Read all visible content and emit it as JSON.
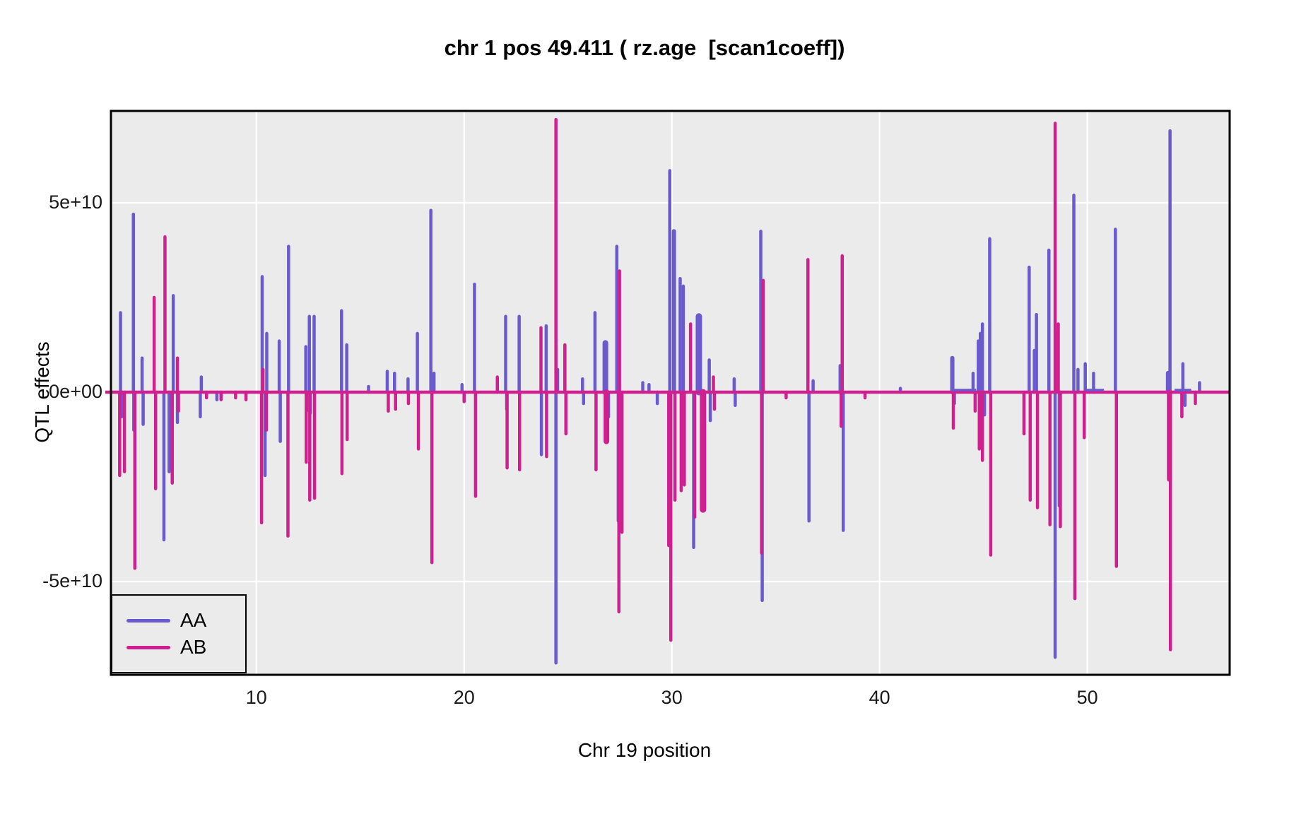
{
  "title": "chr 1 pos 49.411 ( rz.age  [scan1coeff])",
  "chart_data": {
    "type": "line",
    "subtype": "coefficient-scan-spikes",
    "title": "chr 1 pos 49.411 ( rz.age  [scan1coeff])",
    "xlabel": "Chr 19 position",
    "ylabel": "QTL effects",
    "x_ticks": [
      10,
      20,
      30,
      40,
      50
    ],
    "y_ticks": [
      {
        "label": "5e+10",
        "value": 5
      },
      {
        "label": "0e+00",
        "value": 0
      },
      {
        "label": "-5e+10",
        "value": -5
      }
    ],
    "xlim": [
      3.0,
      56.85
    ],
    "ylim": [
      -74500000000.0,
      74500000000.0
    ],
    "value_unit": 10000000000.0,
    "grid": true,
    "panel_bg": "#ebebeb",
    "grid_color": "#ffffff",
    "border_color": "#000000",
    "legend": {
      "position": "bottom-left",
      "entries": [
        {
          "label": "AA",
          "color": "#6A5ACD"
        },
        {
          "label": "AB",
          "color": "#D02090"
        }
      ]
    },
    "baseline": {
      "series": "AB",
      "value": 0,
      "color": "#D02090"
    },
    "aa_baseline_visible_segments": [
      [
        43.45,
        44.65
      ],
      [
        49.95,
        50.8
      ],
      [
        54.2,
        55.0
      ]
    ],
    "series": [
      {
        "name": "AA",
        "color": "#6A5ACD",
        "spikes": [
          [
            3.46,
            2.1
          ],
          [
            3.52,
            -0.65
          ],
          [
            4.08,
            4.7
          ],
          [
            4.1,
            -1.0
          ],
          [
            4.5,
            0.9
          ],
          [
            4.55,
            -0.85
          ],
          [
            5.55,
            -3.9
          ],
          [
            5.8,
            -2.1
          ],
          [
            6.0,
            2.55
          ],
          [
            6.2,
            -0.8
          ],
          [
            7.3,
            -0.65
          ],
          [
            7.35,
            0.4
          ],
          [
            8.1,
            -0.2
          ],
          [
            10.28,
            3.05
          ],
          [
            10.42,
            -2.2
          ],
          [
            10.5,
            1.55
          ],
          [
            11.1,
            1.35
          ],
          [
            11.15,
            -1.3
          ],
          [
            11.55,
            3.85
          ],
          [
            12.38,
            1.2
          ],
          [
            12.42,
            -0.5
          ],
          [
            12.55,
            2.0
          ],
          [
            12.6,
            -0.55
          ],
          [
            12.78,
            2.0
          ],
          [
            14.1,
            2.15
          ],
          [
            14.35,
            1.25
          ],
          [
            15.4,
            0.15
          ],
          [
            16.3,
            0.55
          ],
          [
            16.65,
            0.5
          ],
          [
            17.3,
            0.35
          ],
          [
            17.75,
            1.55
          ],
          [
            18.4,
            4.8
          ],
          [
            18.55,
            0.5
          ],
          [
            19.9,
            0.2
          ],
          [
            20.5,
            2.85
          ],
          [
            21.6,
            0.3
          ],
          [
            22.0,
            2.0
          ],
          [
            22.05,
            -0.45
          ],
          [
            22.65,
            2.0
          ],
          [
            23.72,
            -1.65
          ],
          [
            23.95,
            1.75
          ],
          [
            24.42,
            -7.15
          ],
          [
            24.5,
            0.6
          ],
          [
            25.7,
            0.35
          ],
          [
            25.75,
            -0.3
          ],
          [
            26.3,
            2.1
          ],
          [
            26.8,
            1.3,
            8
          ],
          [
            26.95,
            -0.65
          ],
          [
            27.35,
            3.85
          ],
          [
            27.42,
            -3.4
          ],
          [
            28.6,
            0.25
          ],
          [
            28.9,
            0.2
          ],
          [
            29.3,
            -0.3
          ],
          [
            29.9,
            5.85
          ],
          [
            30.1,
            4.25,
            6
          ],
          [
            30.4,
            3.0
          ],
          [
            30.55,
            2.8
          ],
          [
            31.05,
            -4.1
          ],
          [
            31.3,
            2.0,
            9
          ],
          [
            31.8,
            0.85
          ],
          [
            31.85,
            -0.75
          ],
          [
            33.0,
            0.35
          ],
          [
            33.05,
            -0.35
          ],
          [
            34.28,
            4.25
          ],
          [
            34.35,
            -5.5
          ],
          [
            36.6,
            -3.4
          ],
          [
            36.8,
            0.3
          ],
          [
            38.1,
            0.7
          ],
          [
            38.25,
            -3.65
          ],
          [
            41.0,
            0.1
          ],
          [
            43.5,
            0.9,
            6
          ],
          [
            43.6,
            -0.3
          ],
          [
            44.5,
            0.5
          ],
          [
            44.75,
            1.35
          ],
          [
            44.85,
            1.55
          ],
          [
            44.95,
            1.8
          ],
          [
            45.05,
            -0.6
          ],
          [
            45.3,
            4.05
          ],
          [
            47.2,
            3.3
          ],
          [
            47.45,
            1.1
          ],
          [
            47.55,
            2.05
          ],
          [
            48.15,
            3.75
          ],
          [
            48.45,
            -7.0
          ],
          [
            48.52,
            1.55
          ],
          [
            48.65,
            -3.0
          ],
          [
            49.35,
            5.2
          ],
          [
            49.55,
            0.6
          ],
          [
            49.9,
            0.75
          ],
          [
            50.3,
            0.5
          ],
          [
            51.35,
            4.3
          ],
          [
            53.9,
            0.5,
            7
          ],
          [
            53.98,
            6.9
          ],
          [
            54.6,
            0.75
          ],
          [
            54.7,
            -0.35
          ],
          [
            55.4,
            0.25
          ]
        ]
      },
      {
        "name": "AB",
        "color": "#D02090",
        "spikes": [
          [
            3.42,
            -2.2
          ],
          [
            3.65,
            -2.1
          ],
          [
            4.15,
            -4.65
          ],
          [
            5.08,
            2.5
          ],
          [
            5.15,
            -2.55
          ],
          [
            5.6,
            4.1
          ],
          [
            5.95,
            -2.4
          ],
          [
            6.2,
            0.9
          ],
          [
            6.25,
            -0.5
          ],
          [
            7.6,
            -0.15
          ],
          [
            8.3,
            -0.2
          ],
          [
            9.0,
            -0.15
          ],
          [
            9.5,
            -0.2
          ],
          [
            10.25,
            -3.45
          ],
          [
            10.32,
            0.6
          ],
          [
            10.48,
            -1.0
          ],
          [
            11.52,
            -3.8
          ],
          [
            12.4,
            -1.85
          ],
          [
            12.57,
            -2.85
          ],
          [
            12.8,
            -2.8
          ],
          [
            14.12,
            -2.15
          ],
          [
            14.37,
            -1.25
          ],
          [
            16.35,
            -0.5
          ],
          [
            16.7,
            -0.45
          ],
          [
            17.32,
            -0.3
          ],
          [
            17.8,
            -1.5
          ],
          [
            18.45,
            -4.5
          ],
          [
            20.0,
            -0.25
          ],
          [
            20.55,
            -2.75
          ],
          [
            21.6,
            0.4
          ],
          [
            22.07,
            -2.0
          ],
          [
            22.67,
            -2.05
          ],
          [
            23.7,
            1.7
          ],
          [
            23.97,
            -1.7
          ],
          [
            24.42,
            7.2
          ],
          [
            24.85,
            1.25
          ],
          [
            24.9,
            -1.1
          ],
          [
            26.35,
            -2.05
          ],
          [
            26.85,
            -1.3,
            8
          ],
          [
            27.45,
            -5.8
          ],
          [
            27.48,
            3.2
          ],
          [
            27.6,
            -3.7
          ],
          [
            29.85,
            -4.05
          ],
          [
            29.95,
            -6.55
          ],
          [
            30.15,
            -2.85
          ],
          [
            30.45,
            -2.6
          ],
          [
            30.6,
            -2.45
          ],
          [
            30.9,
            1.8
          ],
          [
            31.1,
            -3.3
          ],
          [
            31.5,
            -3.1,
            9
          ],
          [
            32.0,
            0.4
          ],
          [
            32.05,
            -0.45
          ],
          [
            34.32,
            -4.25
          ],
          [
            34.4,
            2.95
          ],
          [
            35.5,
            -0.15
          ],
          [
            36.55,
            3.5
          ],
          [
            38.15,
            -0.9
          ],
          [
            38.2,
            3.6
          ],
          [
            39.3,
            -0.15
          ],
          [
            43.55,
            -0.95
          ],
          [
            44.6,
            -0.5
          ],
          [
            44.8,
            -1.5
          ],
          [
            44.95,
            -1.8
          ],
          [
            45.35,
            -4.3
          ],
          [
            46.95,
            -1.1
          ],
          [
            47.25,
            -2.85
          ],
          [
            47.6,
            -3.05
          ],
          [
            48.2,
            -3.5
          ],
          [
            48.45,
            7.1
          ],
          [
            48.6,
            1.8
          ],
          [
            48.7,
            -3.55
          ],
          [
            49.4,
            -5.45
          ],
          [
            49.85,
            -1.2
          ],
          [
            51.4,
            -4.6
          ],
          [
            53.95,
            -2.3,
            7
          ],
          [
            54.0,
            -6.8
          ],
          [
            54.55,
            -0.65
          ],
          [
            55.2,
            -0.3
          ]
        ]
      }
    ]
  }
}
